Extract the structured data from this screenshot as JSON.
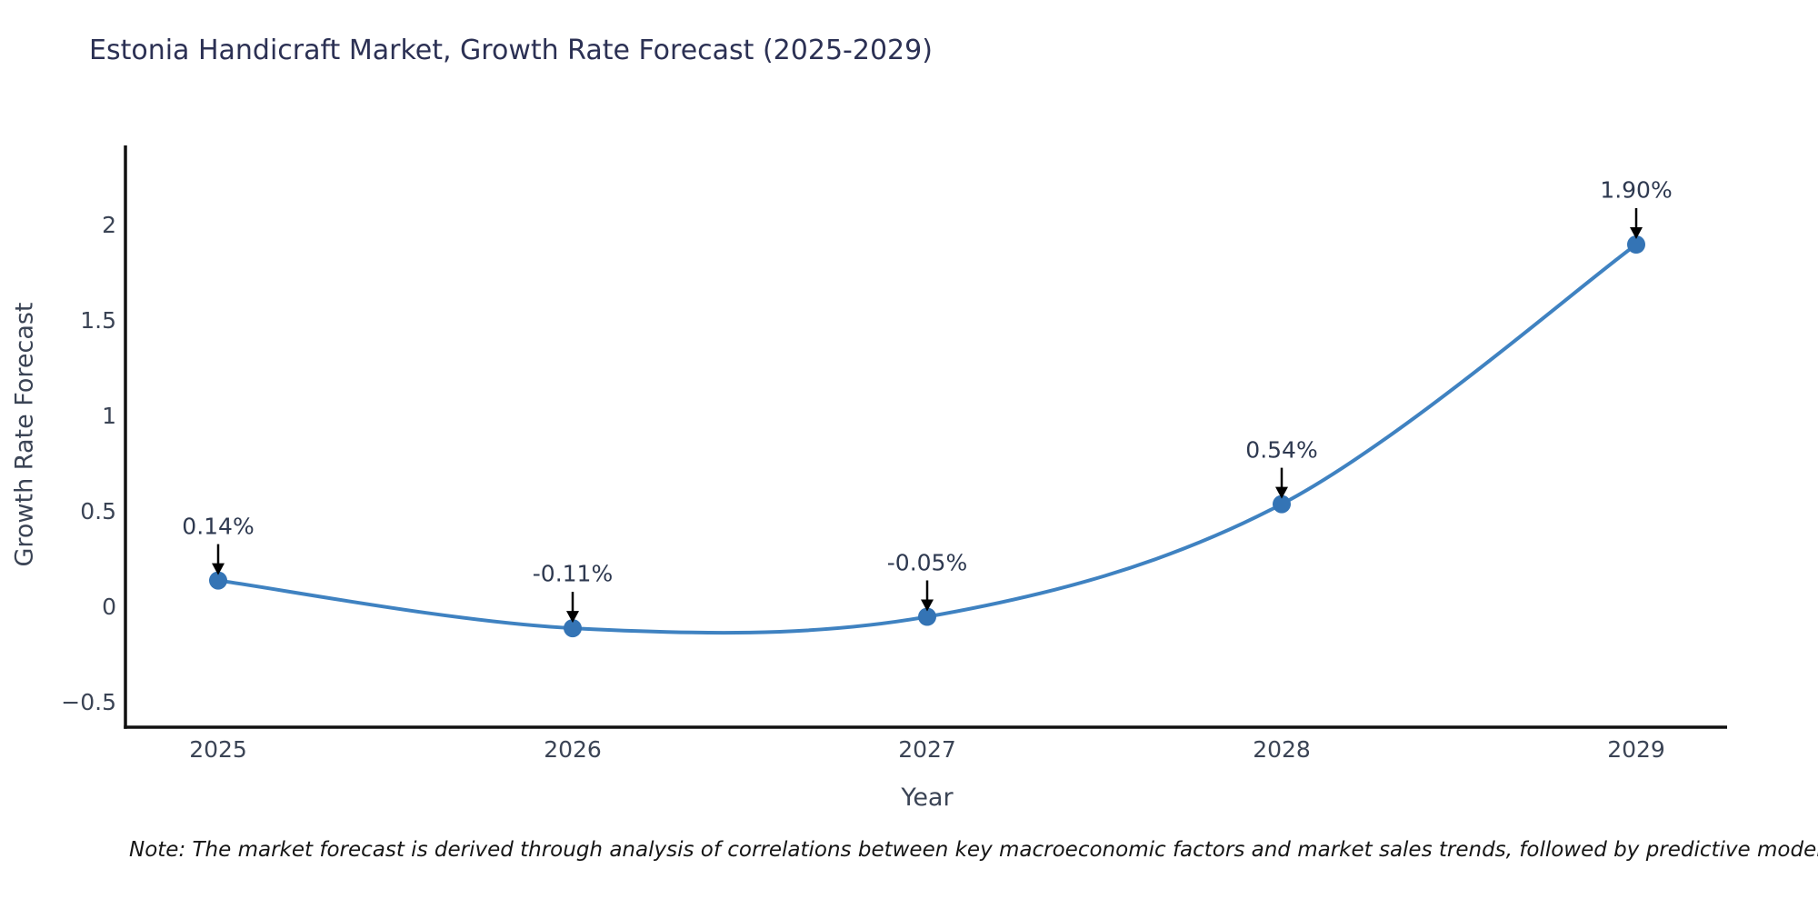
{
  "title": "Estonia Handicraft Market, Growth Rate Forecast (2025-2029)",
  "note": "Note: The market forecast is derived through analysis of correlations between key macroeconomic factors and market sales trends, followed by predictive modeling to project future sa",
  "chart_data": {
    "type": "line",
    "x": [
      2025,
      2026,
      2027,
      2028,
      2029
    ],
    "y": [
      0.14,
      -0.11,
      -0.05,
      0.54,
      1.9
    ],
    "point_labels": [
      "0.14%",
      "-0.11%",
      "-0.05%",
      "0.54%",
      "1.90%"
    ],
    "x_tick_labels": [
      "2025",
      "2026",
      "2027",
      "2028",
      "2029"
    ],
    "y_tick_values": [
      2,
      1.5,
      1,
      0.5,
      0,
      -0.5
    ],
    "y_tick_labels": [
      "2",
      "1.5",
      "1",
      "0.5",
      "0",
      "−0.5"
    ],
    "title": "Estonia Handicraft Market, Growth Rate Forecast (2025-2029)",
    "xlabel": "Year",
    "ylabel": "Growth Rate Forecast",
    "ylim": [
      -0.63,
      2.42
    ],
    "xlim_years": [
      2024.74,
      2029.26
    ],
    "grid": false,
    "legend": "none",
    "smooth": true,
    "annotations": "value labels with downward arrows above each point",
    "colors": {
      "line": "#3f82c1",
      "marker": "#3474b5",
      "axis": "#111111",
      "arrow": "#000000",
      "title_text": "#2c3154",
      "tick_text": "#3b4455"
    }
  }
}
